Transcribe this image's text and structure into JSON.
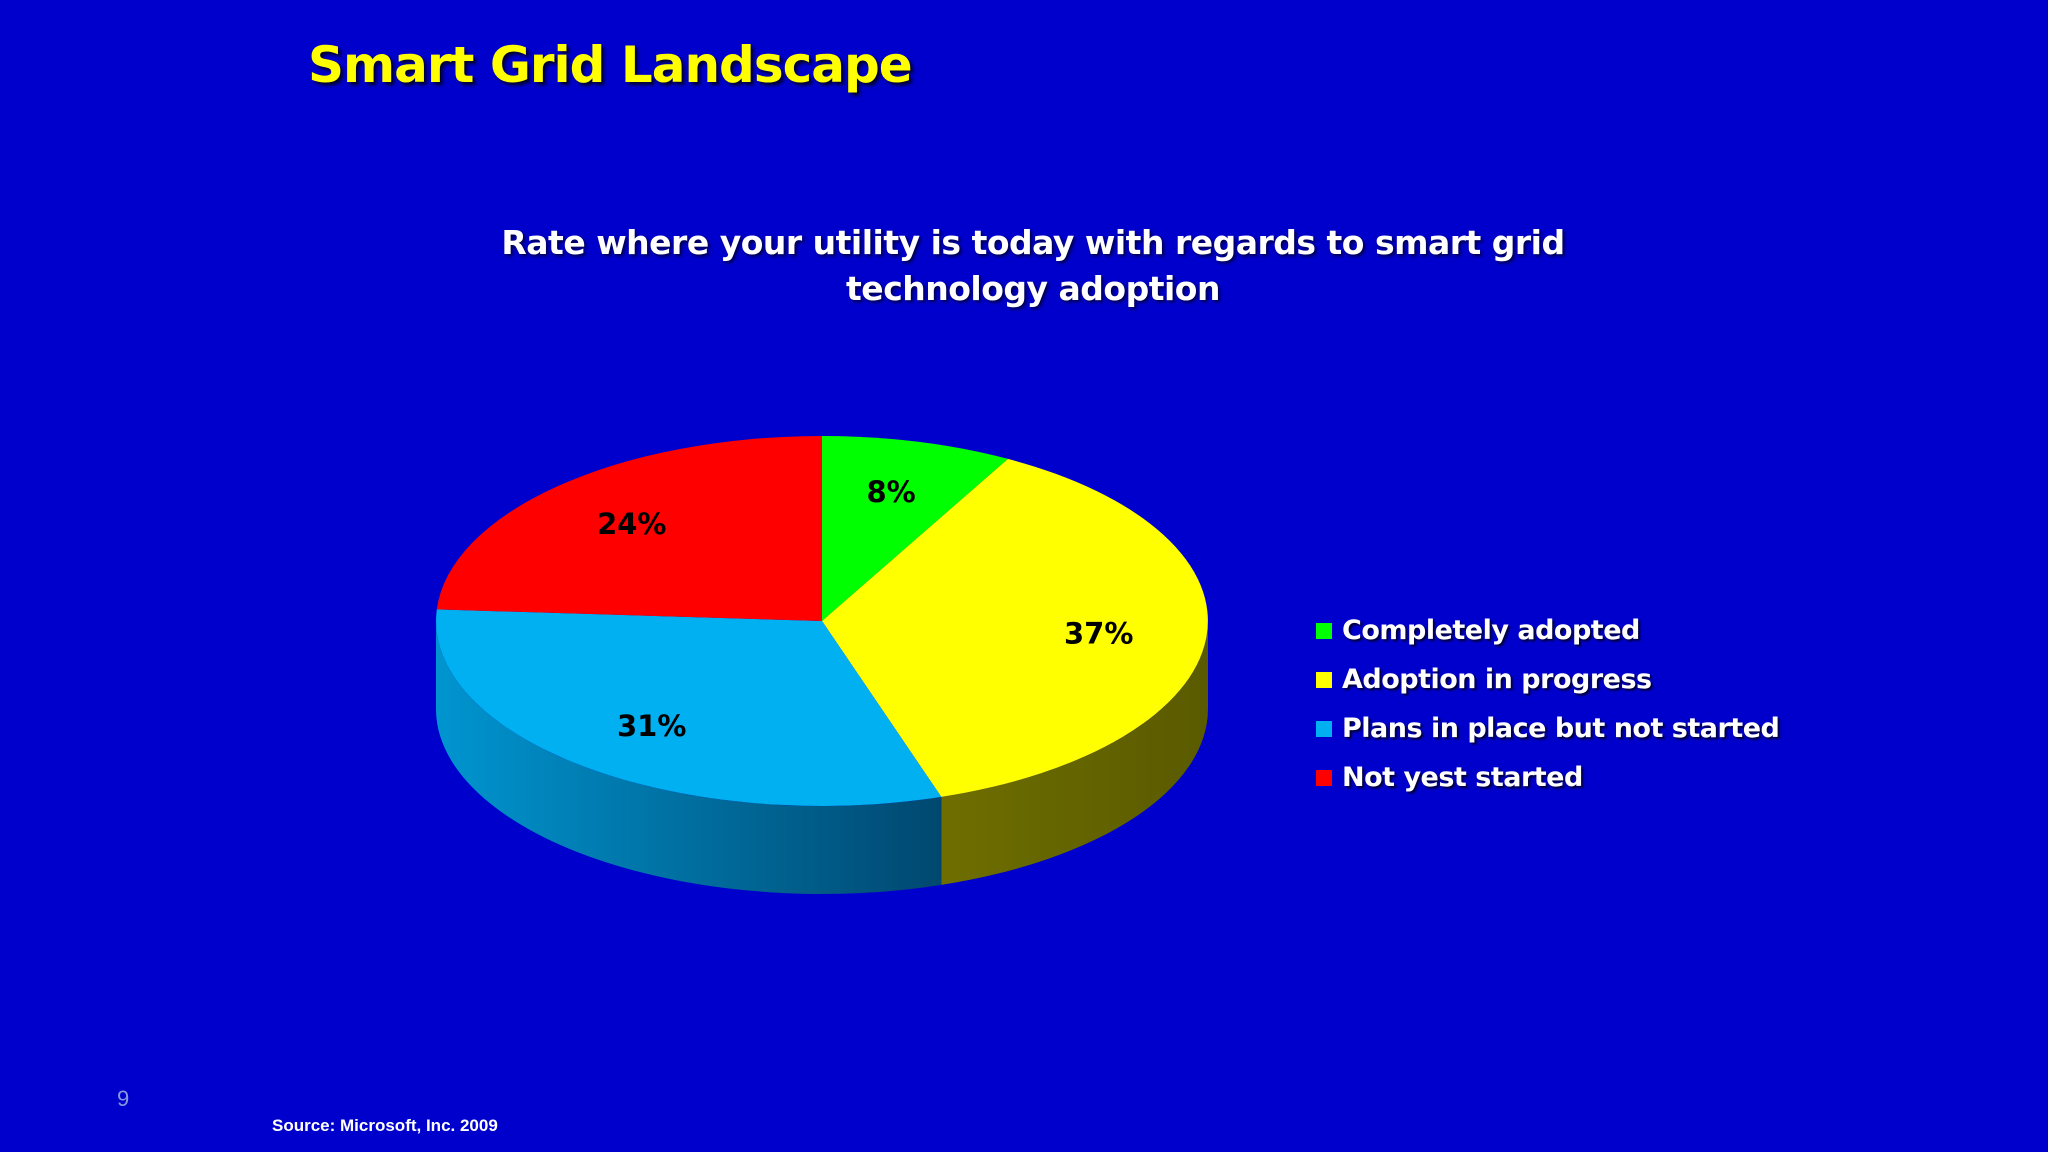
{
  "slide": {
    "title": "Smart Grid Landscape",
    "page_number": "9",
    "source": "Source: Microsoft, Inc. 2009"
  },
  "colors": {
    "background": "#0000CC",
    "title": "#FFFF00"
  },
  "chart_data": {
    "type": "pie",
    "style": "3d",
    "title": "Rate where your utility is today with regards to smart grid technology adoption",
    "legend_position": "right",
    "slices": [
      {
        "name": "Completely adopted",
        "value": 8,
        "label": "8%",
        "color": "#00FF00"
      },
      {
        "name": "Adoption in progress",
        "value": 37,
        "label": "37%",
        "color": "#FFFF00"
      },
      {
        "name": "Plans in place but not started",
        "value": 31,
        "label": "31%",
        "color": "#00B0F0"
      },
      {
        "name": "Not yest started",
        "value": 24,
        "label": "24%",
        "color": "#FF0000"
      }
    ]
  }
}
